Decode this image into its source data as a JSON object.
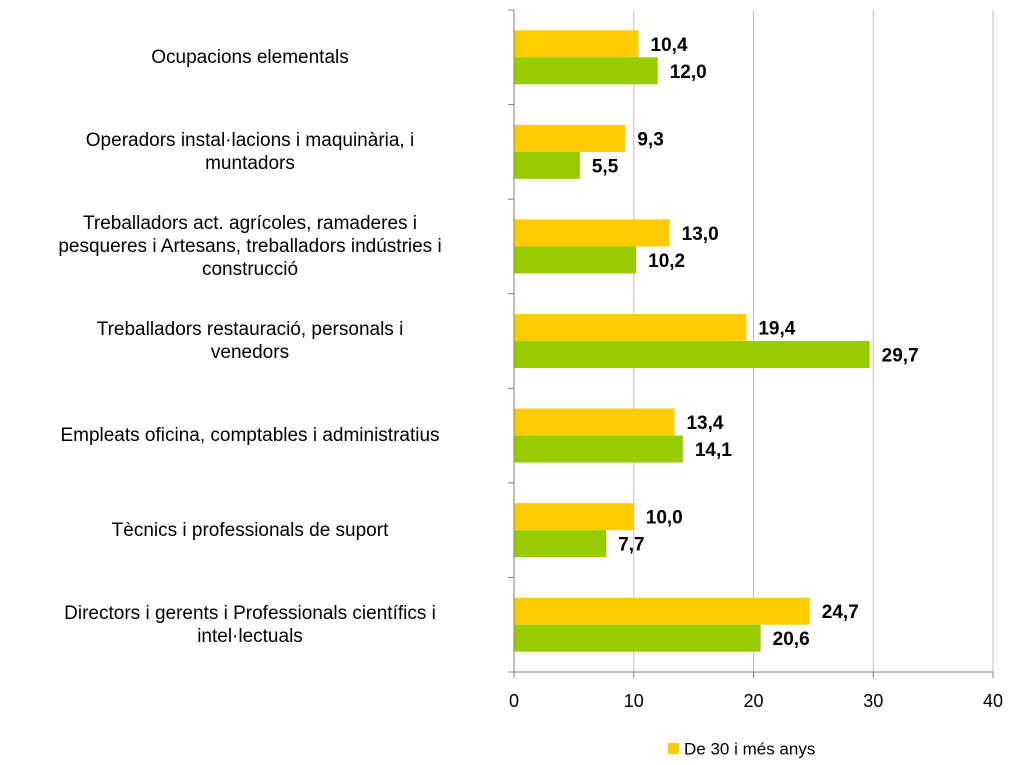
{
  "chart_data": {
    "type": "hbar",
    "categories": [
      "Ocupacions elementals",
      "Operadors instal·lacions i maquinària, i\nmuntadors",
      "Treballadors act. agrícoles, ramaderes i\npesqueres i Artesans, treballadors indústries i\nconstrucció",
      "Treballadors restauració, personals i\nvenedors",
      "Empleats oficina, comptables i administratius",
      "Tècnics i professionals de suport",
      "Directors i gerents i Professionals científics i\nintel·lectuals"
    ],
    "series": [
      {
        "name": "De 30 i més anys",
        "color": "#ffcc00",
        "values": [
          10.4,
          9.3,
          13.0,
          19.4,
          13.4,
          10.0,
          24.7
        ],
        "value_labels": [
          "10,4",
          "9,3",
          "13,0",
          "19,4",
          "13,4",
          "10,0",
          "24,7"
        ]
      },
      {
        "color": "#99cc00",
        "values": [
          12.0,
          5.5,
          10.2,
          29.7,
          14.1,
          7.7,
          20.6
        ],
        "value_labels": [
          "12,0",
          "5,5",
          "10,2",
          "29,7",
          "14,1",
          "7,7",
          "20,6"
        ]
      }
    ],
    "xlim": [
      0,
      40
    ],
    "xticks": [
      0,
      10,
      20,
      30,
      40
    ],
    "grid": true,
    "legend": "bottom"
  }
}
